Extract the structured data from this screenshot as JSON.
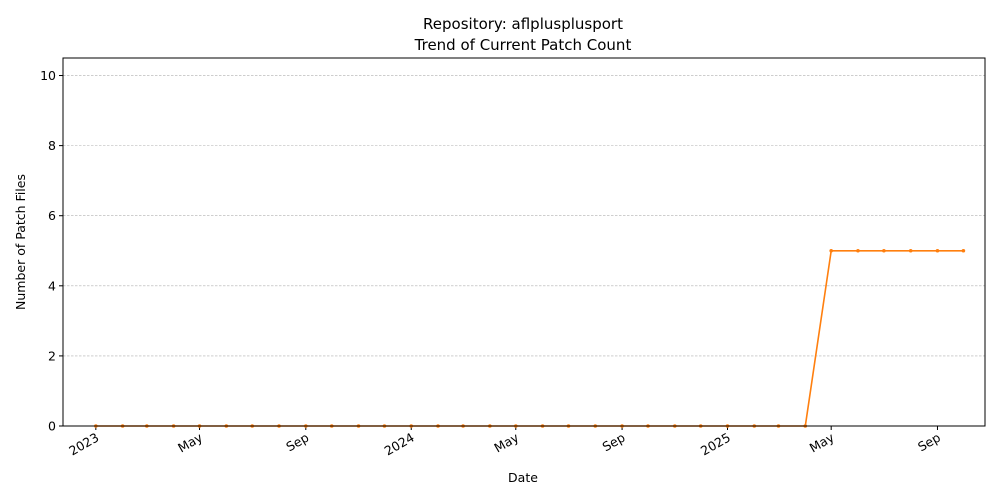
{
  "chart_data": {
    "type": "line",
    "title": "Repository: aflplusplusport",
    "subtitle": "Trend of Current Patch Count",
    "xlabel": "Date",
    "ylabel": "Number of Patch Files",
    "ylim": [
      0,
      10.5
    ],
    "xlim": [
      "2022-11-24",
      "2025-10-26"
    ],
    "grid": "y-dashed",
    "line_color": "#ff7f0e",
    "y_ticks": [
      0,
      2,
      4,
      6,
      8,
      10
    ],
    "x_ticks": [
      {
        "date": "2023-01-01",
        "label": "2023"
      },
      {
        "date": "2023-05-01",
        "label": "May"
      },
      {
        "date": "2023-09-01",
        "label": "Sep"
      },
      {
        "date": "2024-01-01",
        "label": "2024"
      },
      {
        "date": "2024-05-01",
        "label": "May"
      },
      {
        "date": "2024-09-01",
        "label": "Sep"
      },
      {
        "date": "2025-01-01",
        "label": "2025"
      },
      {
        "date": "2025-05-01",
        "label": "May"
      },
      {
        "date": "2025-09-01",
        "label": "Sep"
      }
    ],
    "points": [
      {
        "x": "2023-01-01",
        "y": 0
      },
      {
        "x": "2023-02-01",
        "y": 0
      },
      {
        "x": "2023-03-01",
        "y": 0
      },
      {
        "x": "2023-04-01",
        "y": 0
      },
      {
        "x": "2023-05-01",
        "y": 0
      },
      {
        "x": "2023-06-01",
        "y": 0
      },
      {
        "x": "2023-07-01",
        "y": 0
      },
      {
        "x": "2023-08-01",
        "y": 0
      },
      {
        "x": "2023-09-01",
        "y": 0
      },
      {
        "x": "2023-10-01",
        "y": 0
      },
      {
        "x": "2023-11-01",
        "y": 0
      },
      {
        "x": "2023-12-01",
        "y": 0
      },
      {
        "x": "2024-01-01",
        "y": 0
      },
      {
        "x": "2024-02-01",
        "y": 0
      },
      {
        "x": "2024-03-01",
        "y": 0
      },
      {
        "x": "2024-04-01",
        "y": 0
      },
      {
        "x": "2024-05-01",
        "y": 0
      },
      {
        "x": "2024-06-01",
        "y": 0
      },
      {
        "x": "2024-07-01",
        "y": 0
      },
      {
        "x": "2024-08-01",
        "y": 0
      },
      {
        "x": "2024-09-01",
        "y": 0
      },
      {
        "x": "2024-10-01",
        "y": 0
      },
      {
        "x": "2024-11-01",
        "y": 0
      },
      {
        "x": "2024-12-01",
        "y": 0
      },
      {
        "x": "2025-01-01",
        "y": 0
      },
      {
        "x": "2025-02-01",
        "y": 0
      },
      {
        "x": "2025-03-01",
        "y": 0
      },
      {
        "x": "2025-04-01",
        "y": 0
      },
      {
        "x": "2025-05-01",
        "y": 5
      },
      {
        "x": "2025-06-01",
        "y": 5
      },
      {
        "x": "2025-07-01",
        "y": 5
      },
      {
        "x": "2025-08-01",
        "y": 5
      },
      {
        "x": "2025-09-01",
        "y": 5
      },
      {
        "x": "2025-10-01",
        "y": 5
      }
    ]
  }
}
